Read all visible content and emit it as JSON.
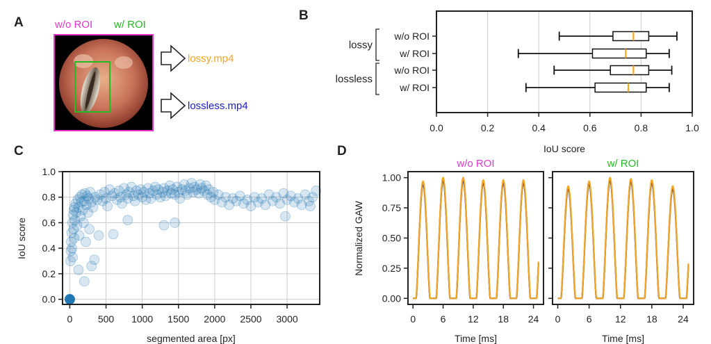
{
  "colors": {
    "magenta": "#e633cc",
    "green": "#22bb22",
    "orange": "#f5a623",
    "blue": "#1a1acc",
    "scatter": "#1f77b4",
    "frame": "#222222",
    "grid": "#cccccc",
    "gaw_dark": "#1a1a66"
  },
  "panel_a": {
    "letter": "A",
    "label_without": "w/o ROI",
    "label_with": "w/ ROI",
    "output_lossy": "lossy.mp4",
    "output_lossless": "lossless.mp4",
    "arrow_icon": "hollow-right-arrow"
  },
  "chart_data": [
    {
      "id": "B",
      "type": "boxplot",
      "letter": "B",
      "xlabel": "IoU score",
      "xlim": [
        0.0,
        1.0
      ],
      "xticks": [
        "0.0",
        "0.2",
        "0.4",
        "0.6",
        "0.8",
        "1.0"
      ],
      "groups": [
        {
          "name": "lossy",
          "items": [
            {
              "label": "w/o ROI",
              "whisker_low": 0.48,
              "q1": 0.69,
              "median": 0.77,
              "q3": 0.83,
              "whisker_high": 0.94
            },
            {
              "label": "w/ ROI",
              "whisker_low": 0.32,
              "q1": 0.61,
              "median": 0.74,
              "q3": 0.82,
              "whisker_high": 0.91
            }
          ]
        },
        {
          "name": "lossless",
          "items": [
            {
              "label": "w/o ROI",
              "whisker_low": 0.46,
              "q1": 0.68,
              "median": 0.77,
              "q3": 0.83,
              "whisker_high": 0.92
            },
            {
              "label": "w/ ROI",
              "whisker_low": 0.35,
              "q1": 0.62,
              "median": 0.75,
              "q3": 0.82,
              "whisker_high": 0.91
            }
          ]
        }
      ]
    },
    {
      "id": "C",
      "type": "scatter",
      "letter": "C",
      "xlabel": "segmented area [px]",
      "ylabel": "IoU score",
      "xlim": [
        -100,
        3450
      ],
      "ylim": [
        -0.04,
        1.0
      ],
      "xticks": [
        "0",
        "500",
        "1000",
        "1500",
        "2000",
        "2500",
        "3000"
      ],
      "yticks": [
        "0.0",
        "0.2",
        "0.4",
        "0.6",
        "0.8",
        "1.0"
      ],
      "highlight_point": [
        0,
        0.0
      ],
      "points": [
        [
          10,
          0.3
        ],
        [
          15,
          0.38
        ],
        [
          20,
          0.45
        ],
        [
          25,
          0.52
        ],
        [
          30,
          0.4
        ],
        [
          35,
          0.6
        ],
        [
          40,
          0.33
        ],
        [
          45,
          0.66
        ],
        [
          50,
          0.55
        ],
        [
          55,
          0.7
        ],
        [
          60,
          0.48
        ],
        [
          65,
          0.72
        ],
        [
          70,
          0.62
        ],
        [
          80,
          0.75
        ],
        [
          90,
          0.68
        ],
        [
          100,
          0.58
        ],
        [
          110,
          0.78
        ],
        [
          120,
          0.72
        ],
        [
          130,
          0.5
        ],
        [
          140,
          0.8
        ],
        [
          150,
          0.65
        ],
        [
          160,
          0.76
        ],
        [
          170,
          0.82
        ],
        [
          180,
          0.7
        ],
        [
          190,
          0.6
        ],
        [
          200,
          0.77
        ],
        [
          210,
          0.83
        ],
        [
          220,
          0.45
        ],
        [
          230,
          0.74
        ],
        [
          240,
          0.81
        ],
        [
          250,
          0.68
        ],
        [
          260,
          0.79
        ],
        [
          270,
          0.55
        ],
        [
          280,
          0.84
        ],
        [
          300,
          0.76
        ],
        [
          320,
          0.72
        ],
        [
          340,
          0.31
        ],
        [
          350,
          0.8
        ],
        [
          380,
          0.78
        ],
        [
          400,
          0.5
        ],
        [
          420,
          0.82
        ],
        [
          450,
          0.77
        ],
        [
          480,
          0.84
        ],
        [
          500,
          0.79
        ],
        [
          520,
          0.73
        ],
        [
          550,
          0.86
        ],
        [
          580,
          0.81
        ],
        [
          600,
          0.51
        ],
        [
          620,
          0.83
        ],
        [
          650,
          0.78
        ],
        [
          680,
          0.85
        ],
        [
          700,
          0.8
        ],
        [
          720,
          0.75
        ],
        [
          750,
          0.87
        ],
        [
          780,
          0.82
        ],
        [
          800,
          0.79
        ],
        [
          820,
          0.84
        ],
        [
          850,
          0.88
        ],
        [
          880,
          0.81
        ],
        [
          900,
          0.77
        ],
        [
          920,
          0.85
        ],
        [
          950,
          0.82
        ],
        [
          980,
          0.86
        ],
        [
          1000,
          0.8
        ],
        [
          1020,
          0.84
        ],
        [
          1050,
          0.78
        ],
        [
          1080,
          0.87
        ],
        [
          1100,
          0.83
        ],
        [
          1120,
          0.79
        ],
        [
          1150,
          0.85
        ],
        [
          1180,
          0.88
        ],
        [
          1200,
          0.82
        ],
        [
          1220,
          0.86
        ],
        [
          1250,
          0.8
        ],
        [
          1280,
          0.84
        ],
        [
          1300,
          0.87
        ],
        [
          1320,
          0.81
        ],
        [
          1350,
          0.85
        ],
        [
          1380,
          0.89
        ],
        [
          1400,
          0.83
        ],
        [
          1420,
          0.86
        ],
        [
          1450,
          0.82
        ],
        [
          1480,
          0.88
        ],
        [
          1500,
          0.84
        ],
        [
          1520,
          0.79
        ],
        [
          1550,
          0.86
        ],
        [
          1580,
          0.9
        ],
        [
          1600,
          0.85
        ],
        [
          1620,
          0.82
        ],
        [
          1650,
          0.87
        ],
        [
          1680,
          0.91
        ],
        [
          1700,
          0.84
        ],
        [
          1720,
          0.88
        ],
        [
          1750,
          0.86
        ],
        [
          1780,
          0.83
        ],
        [
          1800,
          0.9
        ],
        [
          1820,
          0.87
        ],
        [
          1850,
          0.85
        ],
        [
          1880,
          0.89
        ],
        [
          1900,
          0.82
        ],
        [
          1920,
          0.86
        ],
        [
          1950,
          0.8
        ],
        [
          1980,
          0.84
        ],
        [
          2000,
          0.78
        ],
        [
          2050,
          0.82
        ],
        [
          2100,
          0.76
        ],
        [
          2150,
          0.8
        ],
        [
          2200,
          0.74
        ],
        [
          2250,
          0.79
        ],
        [
          2300,
          0.77
        ],
        [
          2350,
          0.81
        ],
        [
          2400,
          0.75
        ],
        [
          2450,
          0.78
        ],
        [
          2500,
          0.73
        ],
        [
          2550,
          0.8
        ],
        [
          2600,
          0.76
        ],
        [
          2650,
          0.79
        ],
        [
          2700,
          0.74
        ],
        [
          2750,
          0.82
        ],
        [
          2800,
          0.77
        ],
        [
          2850,
          0.8
        ],
        [
          2900,
          0.75
        ],
        [
          2950,
          0.83
        ],
        [
          3000,
          0.78
        ],
        [
          3050,
          0.81
        ],
        [
          3100,
          0.76
        ],
        [
          3150,
          0.79
        ],
        [
          3200,
          0.74
        ],
        [
          3250,
          0.82
        ],
        [
          3300,
          0.77
        ],
        [
          3350,
          0.8
        ],
        [
          3400,
          0.85
        ],
        [
          2975,
          0.65
        ],
        [
          3320,
          0.73
        ],
        [
          1300,
          0.58
        ],
        [
          1450,
          0.6
        ],
        [
          800,
          0.62
        ],
        [
          300,
          0.26
        ],
        [
          120,
          0.23
        ],
        [
          200,
          0.14
        ]
      ]
    },
    {
      "id": "D",
      "type": "line",
      "letter": "D",
      "ylabel": "Normalized GAW",
      "xlabel": "Time [ms]",
      "xlim": [
        -1.0,
        26.0
      ],
      "ylim": [
        -0.05,
        1.05
      ],
      "xticks": [
        "0",
        "6",
        "12",
        "18",
        "24"
      ],
      "yticks": [
        "0.00",
        "0.25",
        "0.50",
        "0.75",
        "1.00"
      ],
      "subplots": [
        {
          "title": "w/o ROI",
          "title_color": "#e633cc",
          "period_ms": 4.0,
          "peaks": [
            0.97,
            1.0,
            1.0,
            0.98,
            0.98,
            0.98
          ]
        },
        {
          "title": "w/ ROI",
          "title_color": "#22bb22",
          "period_ms": 4.0,
          "peaks": [
            0.93,
            0.97,
            1.0,
            0.99,
            0.98,
            0.93
          ]
        }
      ]
    }
  ]
}
